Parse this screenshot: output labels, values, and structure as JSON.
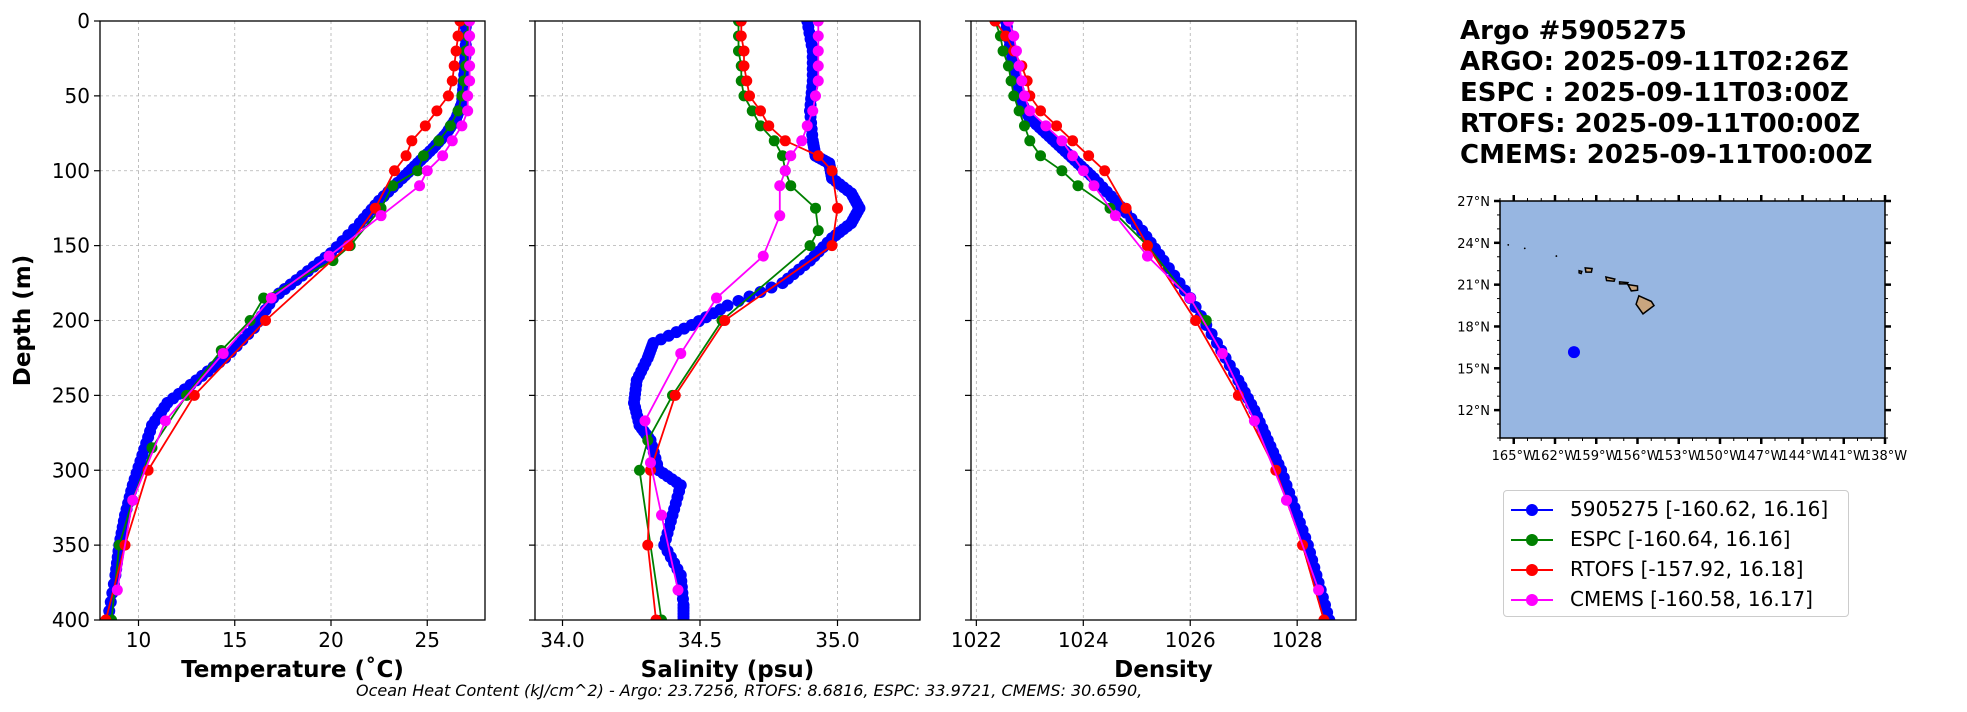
{
  "title_block": {
    "line1": "Argo #5905275",
    "line2": "ARGO: 2025-09-11T02:26Z",
    "line3": "ESPC : 2025-09-11T03:00Z",
    "line4": "RTOFS: 2025-09-11T00:00Z",
    "line5": "CMEMS: 2025-09-11T00:00Z"
  },
  "footer": "Ocean Heat Content (kJ/cm^2) - Argo: 23.7256,  RTOFS: 8.6816,  ESPC: 33.9721,  CMEMS: 30.6590,",
  "legend": [
    {
      "label": "5905275 [-160.62, 16.16]",
      "color": "#0000ff"
    },
    {
      "label": "ESPC [-160.64, 16.16]",
      "color": "#008000"
    },
    {
      "label": "RTOFS [-157.92, 16.18]",
      "color": "#ff0000"
    },
    {
      "label": "CMEMS [-160.58, 16.17]",
      "color": "#ff00ff"
    }
  ],
  "chart_data": [
    {
      "type": "line",
      "id": "temperature",
      "title": "",
      "xlabel": "Temperature (˚C)",
      "ylabel": "Depth (m)",
      "xlim": [
        8,
        28
      ],
      "ylim": [
        400,
        0
      ],
      "xticks": [
        10,
        15,
        20,
        25
      ],
      "yticks": [
        0,
        50,
        100,
        150,
        200,
        250,
        300,
        350,
        400
      ],
      "grid": true,
      "series": [
        {
          "name": "5905275",
          "color": "#0000ff",
          "dense": true,
          "x": [
            27.0,
            27.0,
            26.9,
            26.8,
            26.5,
            26.0,
            25.3,
            24.5,
            23.7,
            22.5,
            21.5,
            20.0,
            18.5,
            17.0,
            16.0,
            14.5,
            13.0,
            11.5,
            10.7,
            10.2,
            9.7,
            9.3,
            9.0,
            8.8,
            8.4
          ],
          "y": [
            0,
            20,
            40,
            55,
            65,
            75,
            85,
            95,
            105,
            120,
            135,
            155,
            170,
            185,
            205,
            225,
            240,
            255,
            270,
            290,
            310,
            330,
            350,
            370,
            400
          ]
        },
        {
          "name": "ESPC",
          "color": "#008000",
          "dense": false,
          "x": [
            27.1,
            27.1,
            27.0,
            27.0,
            26.9,
            26.8,
            26.6,
            26.2,
            25.6,
            24.8,
            24.5,
            23.2,
            22.6,
            21.0,
            20.1,
            16.5,
            15.8,
            14.3,
            12.5,
            10.7,
            9.7,
            9.0,
            8.6
          ],
          "y": [
            0,
            10,
            20,
            30,
            40,
            50,
            60,
            70,
            80,
            90,
            100,
            110,
            125,
            150,
            160,
            185,
            200,
            220,
            250,
            285,
            320,
            350,
            400
          ]
        },
        {
          "name": "RTOFS",
          "color": "#ff0000",
          "dense": false,
          "x": [
            26.7,
            26.6,
            26.5,
            26.4,
            26.3,
            26.1,
            25.5,
            24.9,
            24.2,
            23.9,
            23.3,
            22.3,
            20.9,
            16.6,
            12.9,
            10.5,
            9.3,
            8.3
          ],
          "y": [
            0,
            10,
            20,
            30,
            40,
            50,
            60,
            70,
            80,
            90,
            100,
            125,
            150,
            200,
            250,
            300,
            350,
            400
          ]
        },
        {
          "name": "CMEMS",
          "color": "#ff00ff",
          "dense": false,
          "x": [
            27.2,
            27.2,
            27.2,
            27.2,
            27.2,
            27.1,
            27.1,
            26.8,
            26.3,
            25.8,
            25.0,
            24.6,
            22.6,
            19.9,
            16.9,
            14.4,
            11.4,
            9.7,
            8.9
          ],
          "y": [
            0,
            10,
            20,
            30,
            40,
            50,
            60,
            70,
            80,
            90,
            100,
            110,
            130,
            157,
            185,
            222,
            267,
            320,
            380
          ]
        }
      ]
    },
    {
      "type": "line",
      "id": "salinity",
      "title": "",
      "xlabel": "Salinity (psu)",
      "ylabel": "",
      "xlim": [
        33.9,
        35.3
      ],
      "ylim": [
        400,
        0
      ],
      "xticks": [
        34.0,
        34.5,
        35.0
      ],
      "yticks": [
        0,
        50,
        100,
        150,
        200,
        250,
        300,
        350,
        400
      ],
      "grid": true,
      "series": [
        {
          "name": "5905275",
          "color": "#0000ff",
          "dense": true,
          "x": [
            34.89,
            34.91,
            34.91,
            34.9,
            34.91,
            34.92,
            34.97,
            34.98,
            35.05,
            35.08,
            35.05,
            34.98,
            34.9,
            34.8,
            34.6,
            34.47,
            34.33,
            34.31,
            34.27,
            34.26,
            34.28,
            34.32,
            34.35,
            34.43,
            34.4,
            34.37,
            34.43,
            34.44,
            34.44
          ],
          "y": [
            0,
            20,
            40,
            60,
            80,
            90,
            95,
            105,
            115,
            125,
            135,
            145,
            160,
            175,
            190,
            203,
            215,
            225,
            240,
            255,
            270,
            280,
            300,
            310,
            330,
            350,
            370,
            390,
            400
          ]
        },
        {
          "name": "ESPC",
          "color": "#008000",
          "dense": false,
          "x": [
            34.64,
            34.64,
            34.64,
            34.65,
            34.65,
            34.66,
            34.69,
            34.72,
            34.77,
            34.8,
            34.81,
            34.83,
            34.92,
            34.93,
            34.9,
            34.58,
            34.4,
            34.31,
            34.28,
            34.36
          ],
          "y": [
            0,
            10,
            20,
            30,
            40,
            50,
            60,
            70,
            80,
            90,
            100,
            110,
            125,
            140,
            150,
            200,
            250,
            280,
            300,
            400
          ]
        },
        {
          "name": "RTOFS",
          "color": "#ff0000",
          "dense": false,
          "x": [
            34.65,
            34.65,
            34.66,
            34.66,
            34.67,
            34.68,
            34.72,
            34.75,
            34.81,
            34.93,
            34.98,
            35.0,
            34.98,
            34.59,
            34.41,
            34.32,
            34.31,
            34.34
          ],
          "y": [
            0,
            10,
            20,
            30,
            40,
            50,
            60,
            70,
            80,
            90,
            100,
            125,
            150,
            200,
            250,
            300,
            350,
            400
          ]
        },
        {
          "name": "CMEMS",
          "color": "#ff00ff",
          "dense": false,
          "x": [
            34.93,
            34.93,
            34.93,
            34.93,
            34.93,
            34.92,
            34.91,
            34.89,
            34.87,
            34.83,
            34.81,
            34.79,
            34.79,
            34.73,
            34.56,
            34.43,
            34.3,
            34.32,
            34.36,
            34.42
          ],
          "y": [
            0,
            10,
            20,
            30,
            40,
            50,
            60,
            70,
            80,
            90,
            100,
            110,
            130,
            157,
            185,
            222,
            267,
            295,
            330,
            380
          ]
        }
      ]
    },
    {
      "type": "line",
      "id": "density",
      "title": "",
      "xlabel": "Density",
      "ylabel": "",
      "xlim": [
        1021.9,
        1029.1
      ],
      "ylim": [
        400,
        0
      ],
      "xticks": [
        1022,
        1024,
        1026,
        1028
      ],
      "yticks": [
        0,
        50,
        100,
        150,
        200,
        250,
        300,
        350,
        400
      ],
      "grid": true,
      "series": [
        {
          "name": "5905275",
          "color": "#0000ff",
          "dense": true,
          "x": [
            1022.55,
            1022.65,
            1022.75,
            1022.85,
            1023.0,
            1023.3,
            1023.6,
            1023.9,
            1024.2,
            1024.6,
            1025.1,
            1025.5,
            1026.0,
            1026.5,
            1026.9,
            1027.2,
            1027.45,
            1027.7,
            1027.95,
            1028.2,
            1028.4,
            1028.6
          ],
          "y": [
            0,
            20,
            40,
            55,
            65,
            75,
            85,
            95,
            105,
            120,
            140,
            160,
            185,
            215,
            240,
            260,
            280,
            300,
            325,
            350,
            375,
            400
          ]
        },
        {
          "name": "ESPC",
          "color": "#008000",
          "dense": false,
          "x": [
            1022.35,
            1022.45,
            1022.5,
            1022.6,
            1022.65,
            1022.7,
            1022.8,
            1022.9,
            1023.0,
            1023.2,
            1023.6,
            1023.9,
            1024.5,
            1025.2,
            1026.3
          ],
          "y": [
            0,
            10,
            20,
            30,
            40,
            50,
            60,
            70,
            80,
            90,
            100,
            110,
            125,
            150,
            200
          ]
        },
        {
          "name": "RTOFS",
          "color": "#ff0000",
          "dense": false,
          "x": [
            1022.35,
            1022.55,
            1022.7,
            1022.85,
            1022.95,
            1023.0,
            1023.2,
            1023.5,
            1023.8,
            1024.1,
            1024.4,
            1024.8,
            1025.2,
            1026.1,
            1026.9,
            1027.6,
            1028.1,
            1028.5
          ],
          "y": [
            0,
            10,
            20,
            30,
            40,
            50,
            60,
            70,
            80,
            90,
            100,
            125,
            150,
            200,
            250,
            300,
            350,
            400
          ]
        },
        {
          "name": "CMEMS",
          "color": "#ff00ff",
          "dense": false,
          "x": [
            1022.6,
            1022.7,
            1022.75,
            1022.8,
            1022.85,
            1022.9,
            1023.0,
            1023.3,
            1023.6,
            1023.8,
            1024.0,
            1024.2,
            1024.6,
            1025.2,
            1026.0,
            1026.6,
            1027.2,
            1027.8,
            1028.4
          ],
          "y": [
            0,
            10,
            20,
            30,
            40,
            50,
            60,
            70,
            80,
            90,
            100,
            110,
            130,
            157,
            185,
            222,
            267,
            320,
            380
          ]
        }
      ]
    },
    {
      "type": "scatter",
      "id": "map",
      "title": "",
      "xlabel": "",
      "ylabel": "",
      "xlim": [
        -166,
        -138
      ],
      "ylim": [
        10,
        27
      ],
      "xticks": [
        -165,
        -162,
        -159,
        -156,
        -153,
        -150,
        -147,
        -144,
        -141,
        -138
      ],
      "xticklabels": [
        "165°W",
        "162°W",
        "159°W",
        "156°W",
        "153°W",
        "150°W",
        "147°W",
        "144°W",
        "141°W",
        "138°W"
      ],
      "yticks": [
        12,
        15,
        18,
        21,
        24,
        27
      ],
      "yticklabels": [
        "12°N",
        "15°N",
        "18°N",
        "21°N",
        "24°N",
        "27°N"
      ],
      "ocean_color": "#97b6e1",
      "land_color": "#c9a57e",
      "marker": {
        "lon": -160.62,
        "lat": 16.16,
        "color": "#0000ff"
      }
    }
  ]
}
